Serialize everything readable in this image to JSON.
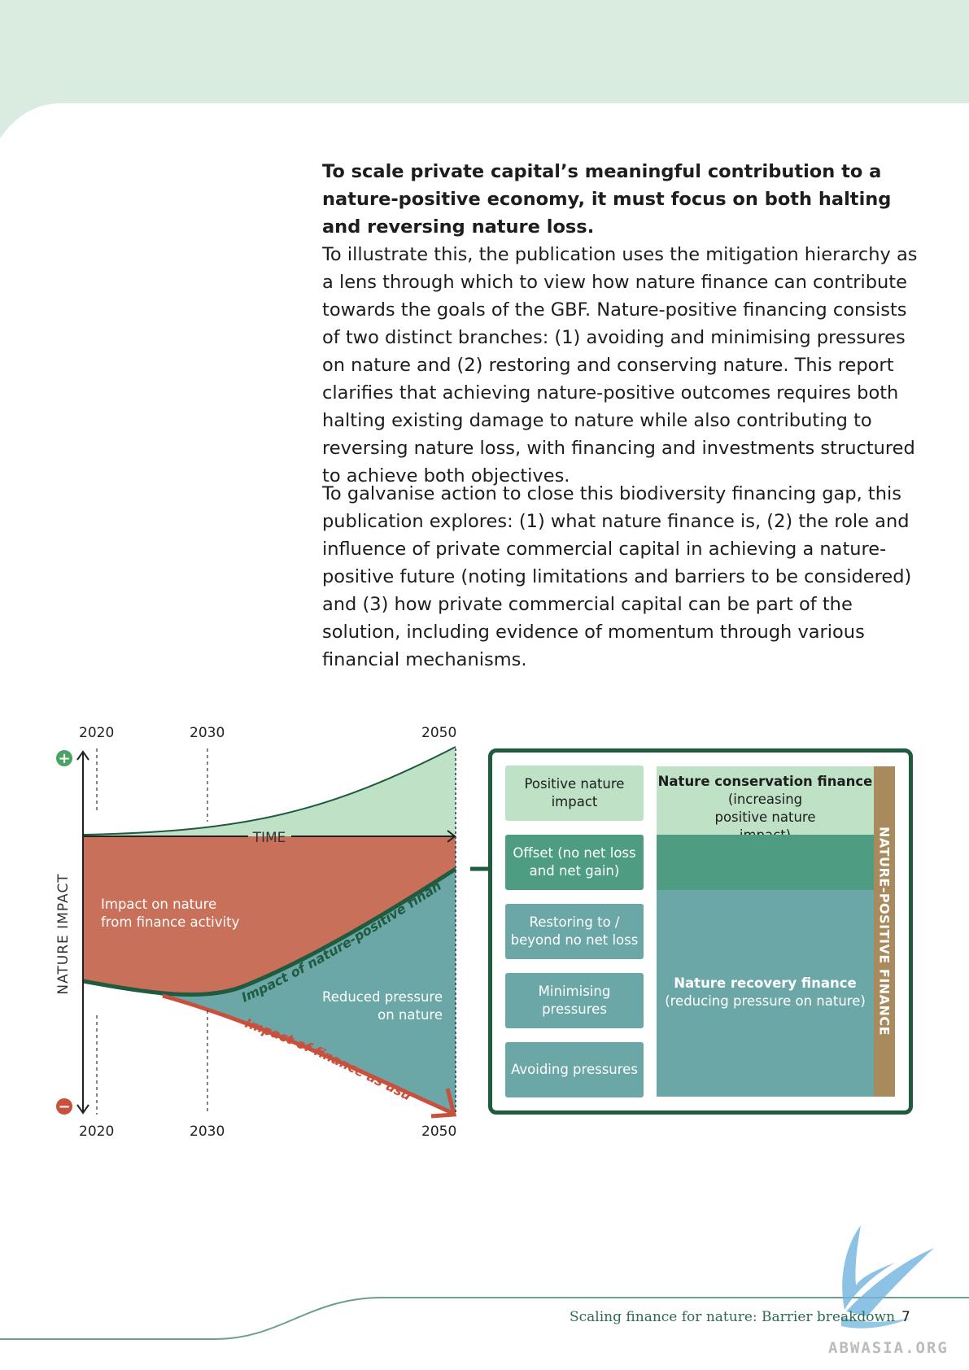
{
  "intro": {
    "lead": "To scale private capital’s meaningful contribution to a nature-positive economy, it must focus on both halting and reversing nature loss.",
    "paragraph1": "To illustrate this, the publication uses the mitigation hierarchy as a lens through which to view how nature finance can contribute towards the goals of the GBF. Nature-positive financing consists of two distinct branches: (1) avoiding and minimising pressures on nature and (2) restoring and conserving nature. This report clarifies that achieving nature-positive outcomes requires both halting existing damage to nature while also contributing to reversing nature loss, with financing and investments structured to achieve both objectives.",
    "paragraph2": "To galvanise action to close this biodiversity financing gap, this publication explores: (1) what nature finance is, (2) the role and influence of private commercial capital in achieving a nature-positive future (noting limitations and barriers to be considered) and (3) how private commercial capital can be part of the solution, including evidence of momentum through various financial mechanisms."
  },
  "figure": {
    "years": [
      "2020",
      "2030",
      "2050"
    ],
    "y_axis_label": "NATURE IMPACT",
    "time_label": "TIME",
    "plus_symbol": "+",
    "minus_symbol": "−",
    "area_labels": {
      "impact_on_nature": [
        "Impact on nature",
        "from finance activity"
      ],
      "reduced_pressure": [
        "Reduced pressure",
        "on nature"
      ]
    },
    "curve_labels": {
      "nature_positive": "Impact of nature-positive finance",
      "usual": "Impact of finance as usual"
    },
    "colors": {
      "light_green": "#bfe2c6",
      "terracotta": "#c8705a",
      "teal": "#6ba7a7",
      "dark_green": "#205a3f",
      "red_arrow": "#c9503c",
      "mid_green": "#4e9d82",
      "gold": "#a98a5c"
    }
  },
  "legend": {
    "boxes": [
      "Positive nature impact",
      "Offset (no net loss and net gain)",
      "Restoring to / beyond no net loss",
      "Minimising pressures",
      "Avoiding pressures"
    ],
    "conservation": {
      "title": "Nature conservation finance",
      "subtitle": "(increasing positive nature impact)"
    },
    "recovery": {
      "title": "Nature recovery finance",
      "subtitle": "(reducing pressure on nature)"
    },
    "vertical_label": "NATURE-POSITIVE FINANCE"
  },
  "footer": {
    "title": "Scaling finance for nature: Barrier breakdown",
    "page": "7",
    "watermark": "ABWASIA.ORG"
  }
}
